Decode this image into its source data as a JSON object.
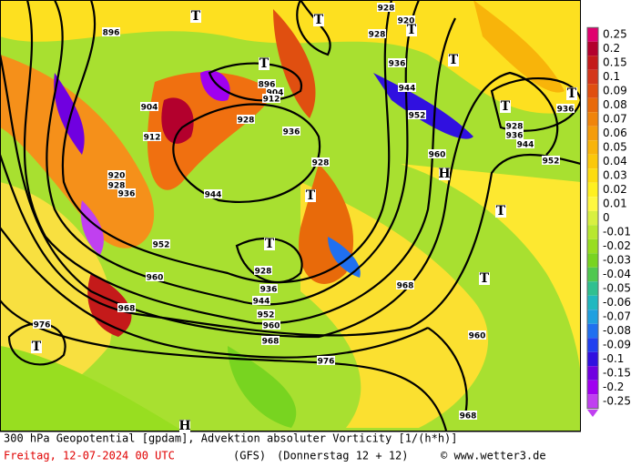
{
  "header": {
    "title": "300 hPa Geopotential [gpdam], Advektion absoluter Vorticity [1/(h*h)]"
  },
  "footer": {
    "date": "Freitag, 12-07-2024  00 UTC",
    "model": "(GFS)",
    "run": "(Donnerstag 12 + 12)",
    "credit": "© www.wetter3.de"
  },
  "colorbar": {
    "labels": [
      "0.25",
      "0.2",
      "0.15",
      "0.1",
      "0.09",
      "0.08",
      "0.07",
      "0.06",
      "0.05",
      "0.04",
      "0.03",
      "0.02",
      "0.01",
      "0",
      "-0.01",
      "-0.02",
      "-0.03",
      "-0.04",
      "-0.05",
      "-0.06",
      "-0.07",
      "-0.08",
      "-0.09",
      "-0.1",
      "-0.15",
      "-0.2",
      "-0.25"
    ],
    "colors": [
      "#e0006e",
      "#b3002d",
      "#c41a1a",
      "#d4361a",
      "#e04f10",
      "#e86a0a",
      "#f0840a",
      "#f59c0a",
      "#f8b40a",
      "#fbc80a",
      "#fddc10",
      "#fff020",
      "#fff840",
      "#d8f040",
      "#b8e830",
      "#98de20",
      "#78d420",
      "#50c850",
      "#30c090",
      "#20b8c0",
      "#20a0e0",
      "#2070f0",
      "#2040f0",
      "#3010e0",
      "#7000e0",
      "#a000f0",
      "#c040f0"
    ]
  },
  "contour_labels": [
    "896",
    "928",
    "920",
    "928",
    "936",
    "944",
    "952",
    "960",
    "896",
    "904",
    "912",
    "904",
    "912",
    "928",
    "936",
    "920",
    "928",
    "936",
    "944",
    "928",
    "952",
    "960",
    "968",
    "928",
    "936",
    "944",
    "952",
    "960",
    "968",
    "976",
    "976",
    "968",
    "960",
    "968",
    "928",
    "936",
    "944",
    "952",
    "936"
  ],
  "centers": [
    "T",
    "T",
    "T",
    "T",
    "T",
    "T",
    "T",
    "T",
    "T",
    "T",
    "T",
    "T",
    "H",
    "H"
  ]
}
